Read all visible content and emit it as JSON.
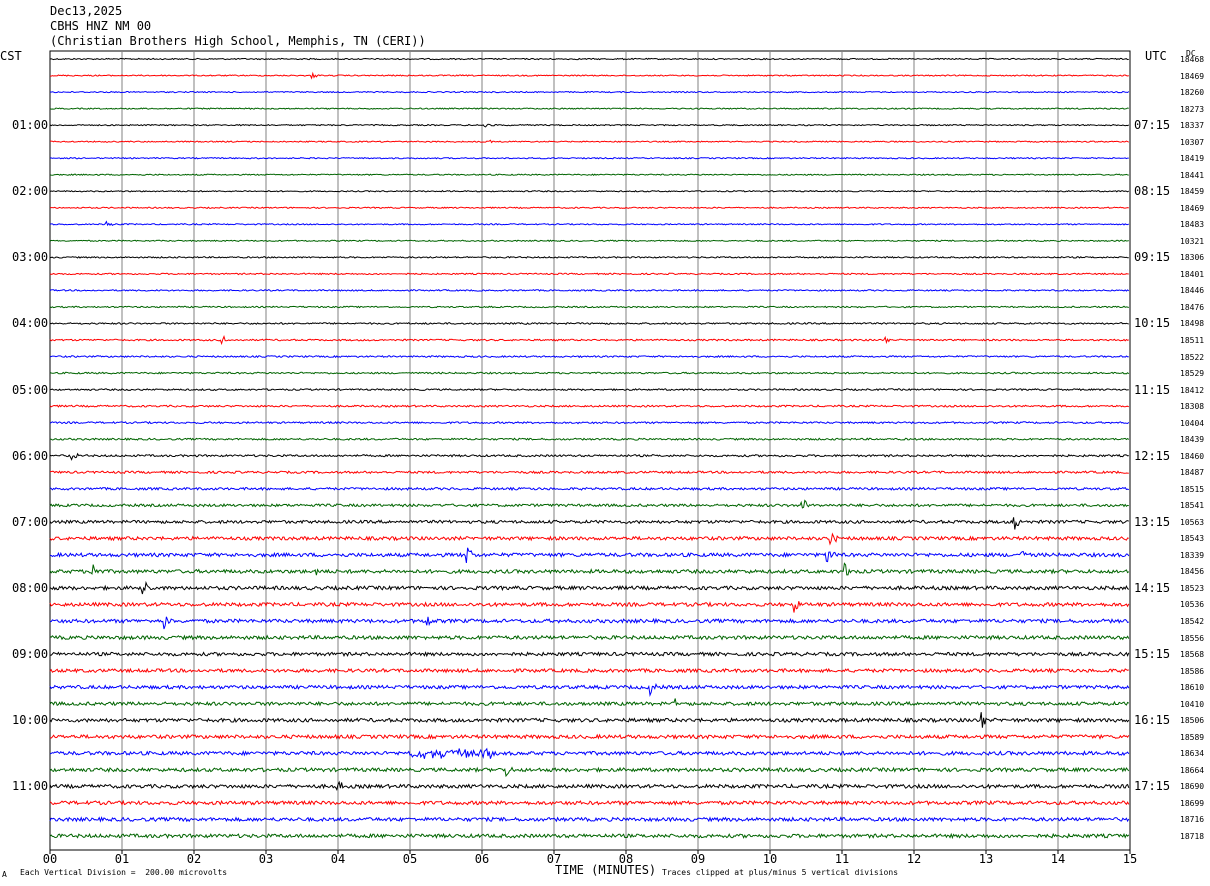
{
  "header": {
    "date": "Dec13,2025",
    "station": "CBHS HNZ NM 00",
    "location": "(Christian Brothers High School, Memphis, TN (CERI))"
  },
  "left_tz": "CST",
  "right_tz": "UTC",
  "dc_header": "DC",
  "footer": {
    "scale_note": "Each Vertical Division =  200.00 microvolts",
    "clip_note": "Traces clipped at plus/minus 5 vertical divisions",
    "corner_mark": "A"
  },
  "colors": {
    "trace_cycle": [
      "#000000",
      "#ff0000",
      "#0000ff",
      "#006400"
    ],
    "grid": "#808080"
  },
  "chart_data": {
    "type": "line",
    "title": "",
    "xlabel": "TIME (MINUTES)",
    "ylabel": "",
    "xlim": [
      0,
      15
    ],
    "x_ticks": [
      "00",
      "01",
      "02",
      "03",
      "04",
      "05",
      "06",
      "07",
      "08",
      "09",
      "10",
      "11",
      "12",
      "13",
      "14",
      "15"
    ],
    "grid": true,
    "rows_per_hour": 4,
    "row_minutes": 15,
    "left_hour_labels": [
      "01:00",
      "02:00",
      "03:00",
      "04:00",
      "05:00",
      "06:00",
      "07:00",
      "08:00",
      "09:00",
      "10:00",
      "11:00"
    ],
    "right_hour_labels": [
      "07:15",
      "08:15",
      "09:15",
      "10:15",
      "11:15",
      "12:15",
      "13:15",
      "14:15",
      "15:15",
      "16:15",
      "17:15"
    ],
    "dc_offsets": [
      "18468",
      "18469",
      "18260",
      "18273",
      "18337",
      "10307",
      "18419",
      "18441",
      "18459",
      "18469",
      "18483",
      "10321",
      "18306",
      "18401",
      "18446",
      "18476",
      "18498",
      "18511",
      "18522",
      "18529",
      "18412",
      "18308",
      "10404",
      "18439",
      "18460",
      "18487",
      "18515",
      "18541",
      "10563",
      "18543",
      "18339",
      "18456",
      "18523",
      "10536",
      "18542",
      "18556",
      "18568",
      "18586",
      "18610",
      "10410",
      "18506",
      "18589",
      "18634",
      "18664",
      "18690",
      "18699",
      "18716",
      "18718"
    ],
    "noise_level": [
      0.6,
      0.6,
      0.6,
      0.6,
      0.6,
      0.6,
      0.6,
      0.6,
      0.6,
      0.6,
      0.6,
      0.6,
      0.7,
      0.7,
      0.7,
      0.7,
      0.8,
      0.8,
      0.8,
      0.8,
      0.8,
      0.9,
      0.9,
      0.9,
      1.0,
      1.1,
      1.2,
      1.3,
      1.5,
      1.7,
      1.8,
      1.8,
      1.8,
      1.8,
      1.8,
      1.8,
      1.7,
      1.7,
      1.7,
      1.7,
      1.8,
      1.8,
      1.8,
      1.8,
      1.8,
      1.8,
      1.8,
      1.8
    ],
    "events": [
      {
        "row": 1,
        "minute": 3.65,
        "amp": 3
      },
      {
        "row": 4,
        "minute": 6.05,
        "amp": 3
      },
      {
        "row": 5,
        "minute": 6.1,
        "amp": 3
      },
      {
        "row": 10,
        "minute": 0.8,
        "amp": 3
      },
      {
        "row": 17,
        "minute": 2.4,
        "amp": 4
      },
      {
        "row": 17,
        "minute": 11.6,
        "amp": 4
      },
      {
        "row": 24,
        "minute": 0.3,
        "amp": 5
      },
      {
        "row": 27,
        "minute": 10.45,
        "amp": 9
      },
      {
        "row": 28,
        "minute": 13.4,
        "amp": 9
      },
      {
        "row": 29,
        "minute": 10.85,
        "amp": 6
      },
      {
        "row": 30,
        "minute": 5.8,
        "amp": 9
      },
      {
        "row": 30,
        "minute": 10.8,
        "amp": 8
      },
      {
        "row": 30,
        "minute": 13.5,
        "amp": 6
      },
      {
        "row": 31,
        "minute": 0.6,
        "amp": 8
      },
      {
        "row": 31,
        "minute": 3.7,
        "amp": 7
      },
      {
        "row": 31,
        "minute": 11.05,
        "amp": 7
      },
      {
        "row": 32,
        "minute": 1.3,
        "amp": 9
      },
      {
        "row": 33,
        "minute": 10.35,
        "amp": 7
      },
      {
        "row": 34,
        "minute": 1.6,
        "amp": 7
      },
      {
        "row": 34,
        "minute": 5.25,
        "amp": 7
      },
      {
        "row": 38,
        "minute": 8.35,
        "amp": 6
      },
      {
        "row": 39,
        "minute": 8.7,
        "amp": 6
      },
      {
        "row": 40,
        "minute": 12.95,
        "amp": 9
      },
      {
        "row": 41,
        "minute": 14.35,
        "amp": 5
      },
      {
        "row": 42,
        "minute": 5.0,
        "amp": 4,
        "long": 1.2
      },
      {
        "row": 43,
        "minute": 6.35,
        "amp": 7
      },
      {
        "row": 44,
        "minute": 4.0,
        "amp": 6
      }
    ]
  }
}
